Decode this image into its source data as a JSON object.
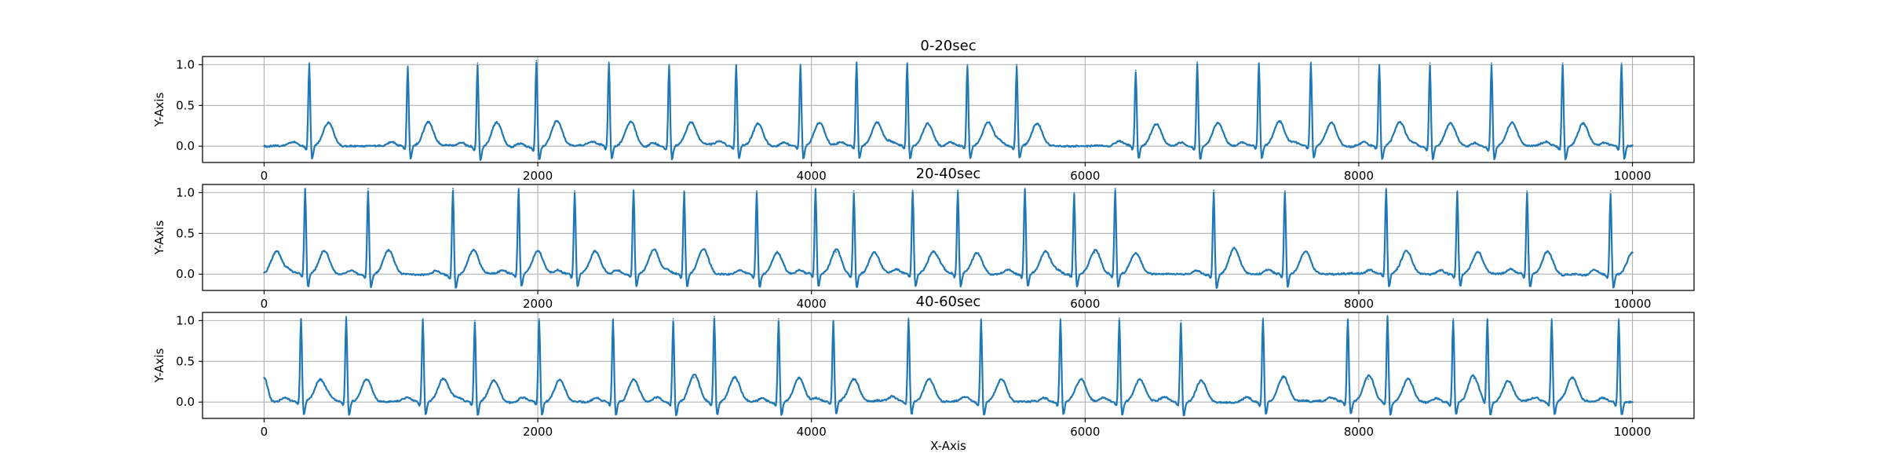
{
  "chart_data": [
    {
      "type": "line",
      "title": "0-20sec",
      "xlabel": "",
      "ylabel": "Y-Axis",
      "xlim": [
        -450,
        10450
      ],
      "ylim": [
        -0.2,
        1.1
      ],
      "xticks": [
        0,
        2000,
        4000,
        6000,
        8000,
        10000
      ],
      "yticks": [
        0.0,
        0.5,
        1.0
      ],
      "xtick_labels": [
        "0",
        "2000",
        "4000",
        "6000",
        "8000",
        "10000"
      ],
      "ytick_labels": [
        "0.0",
        "0.5",
        "1.0"
      ],
      "grid": true,
      "series": [
        {
          "color": "#1f77b4",
          "x_range": [
            0,
            10000
          ],
          "baseline": 0.0,
          "r_peaks": [
            {
              "x": 330,
              "y": 1.02
            },
            {
              "x": 1050,
              "y": 0.98
            },
            {
              "x": 1560,
              "y": 1.02
            },
            {
              "x": 1990,
              "y": 1.05
            },
            {
              "x": 2520,
              "y": 1.03
            },
            {
              "x": 2960,
              "y": 1.0
            },
            {
              "x": 3450,
              "y": 1.0
            },
            {
              "x": 3920,
              "y": 1.0
            },
            {
              "x": 4330,
              "y": 1.03
            },
            {
              "x": 4700,
              "y": 1.02
            },
            {
              "x": 5140,
              "y": 1.0
            },
            {
              "x": 5500,
              "y": 1.0
            },
            {
              "x": 6370,
              "y": 0.93
            },
            {
              "x": 6820,
              "y": 1.03
            },
            {
              "x": 7270,
              "y": 1.02
            },
            {
              "x": 7650,
              "y": 1.03
            },
            {
              "x": 8150,
              "y": 1.0
            },
            {
              "x": 8520,
              "y": 1.02
            },
            {
              "x": 8970,
              "y": 1.02
            },
            {
              "x": 9490,
              "y": 1.02
            },
            {
              "x": 9920,
              "y": 1.02
            }
          ],
          "t_waves": [
            {
              "x": 470,
              "y": 0.29
            },
            {
              "x": 1200,
              "y": 0.3
            },
            {
              "x": 1700,
              "y": 0.3
            },
            {
              "x": 2140,
              "y": 0.31
            },
            {
              "x": 2680,
              "y": 0.3
            },
            {
              "x": 3120,
              "y": 0.29
            },
            {
              "x": 3610,
              "y": 0.28
            },
            {
              "x": 4060,
              "y": 0.29
            },
            {
              "x": 4480,
              "y": 0.29
            },
            {
              "x": 4850,
              "y": 0.28
            },
            {
              "x": 5290,
              "y": 0.29
            },
            {
              "x": 5650,
              "y": 0.27
            },
            {
              "x": 6520,
              "y": 0.27
            },
            {
              "x": 6970,
              "y": 0.29
            },
            {
              "x": 7420,
              "y": 0.3
            },
            {
              "x": 7800,
              "y": 0.29
            },
            {
              "x": 8300,
              "y": 0.3
            },
            {
              "x": 8670,
              "y": 0.29
            },
            {
              "x": 9120,
              "y": 0.29
            },
            {
              "x": 9640,
              "y": 0.29
            }
          ]
        }
      ]
    },
    {
      "type": "line",
      "title": "20-40sec",
      "xlabel": "",
      "ylabel": "Y-Axis",
      "xlim": [
        -450,
        10450
      ],
      "ylim": [
        -0.2,
        1.1
      ],
      "xticks": [
        0,
        2000,
        4000,
        6000,
        8000,
        10000
      ],
      "yticks": [
        0.0,
        0.5,
        1.0
      ],
      "xtick_labels": [
        "0",
        "2000",
        "4000",
        "6000",
        "8000",
        "10000"
      ],
      "ytick_labels": [
        "0.0",
        "0.5",
        "1.0"
      ],
      "grid": true,
      "series": [
        {
          "color": "#1f77b4",
          "x_range": [
            0,
            10000
          ],
          "baseline": 0.0,
          "r_peaks": [
            {
              "x": 300,
              "y": 1.05
            },
            {
              "x": 760,
              "y": 1.05
            },
            {
              "x": 1380,
              "y": 1.05
            },
            {
              "x": 1860,
              "y": 1.05
            },
            {
              "x": 2270,
              "y": 1.02
            },
            {
              "x": 2700,
              "y": 1.03
            },
            {
              "x": 3070,
              "y": 1.02
            },
            {
              "x": 3600,
              "y": 1.02
            },
            {
              "x": 4030,
              "y": 1.05
            },
            {
              "x": 4310,
              "y": 1.02
            },
            {
              "x": 4740,
              "y": 1.03
            },
            {
              "x": 5070,
              "y": 1.03
            },
            {
              "x": 5560,
              "y": 1.05
            },
            {
              "x": 5920,
              "y": 1.0
            },
            {
              "x": 6220,
              "y": 1.05
            },
            {
              "x": 6940,
              "y": 1.03
            },
            {
              "x": 7460,
              "y": 1.02
            },
            {
              "x": 8200,
              "y": 1.05
            },
            {
              "x": 8720,
              "y": 1.02
            },
            {
              "x": 9230,
              "y": 1.02
            },
            {
              "x": 9840,
              "y": 1.02
            }
          ],
          "t_waves": [
            {
              "x": 90,
              "y": 0.28
            },
            {
              "x": 440,
              "y": 0.29
            },
            {
              "x": 910,
              "y": 0.3
            },
            {
              "x": 1530,
              "y": 0.3
            },
            {
              "x": 2000,
              "y": 0.29
            },
            {
              "x": 2420,
              "y": 0.29
            },
            {
              "x": 2850,
              "y": 0.3
            },
            {
              "x": 3210,
              "y": 0.3
            },
            {
              "x": 3750,
              "y": 0.28
            },
            {
              "x": 4180,
              "y": 0.27
            },
            {
              "x": 4460,
              "y": 0.27
            },
            {
              "x": 4890,
              "y": 0.27
            },
            {
              "x": 5210,
              "y": 0.26
            },
            {
              "x": 5710,
              "y": 0.28
            },
            {
              "x": 6070,
              "y": 0.26
            },
            {
              "x": 6370,
              "y": 0.26
            },
            {
              "x": 7090,
              "y": 0.33
            },
            {
              "x": 7610,
              "y": 0.28
            },
            {
              "x": 8350,
              "y": 0.29
            },
            {
              "x": 8870,
              "y": 0.28
            },
            {
              "x": 9380,
              "y": 0.28
            },
            {
              "x": 10000,
              "y": 0.27
            }
          ]
        }
      ]
    },
    {
      "type": "line",
      "title": "40-60sec",
      "xlabel": "X-Axis",
      "ylabel": "Y-Axis",
      "xlim": [
        -450,
        10450
      ],
      "ylim": [
        -0.2,
        1.1
      ],
      "xticks": [
        0,
        2000,
        4000,
        6000,
        8000,
        10000
      ],
      "yticks": [
        0.0,
        0.5,
        1.0
      ],
      "xtick_labels": [
        "0",
        "2000",
        "4000",
        "6000",
        "8000",
        "10000"
      ],
      "ytick_labels": [
        "0.0",
        "0.5",
        "1.0"
      ],
      "grid": true,
      "series": [
        {
          "color": "#1f77b4",
          "x_range": [
            0,
            10000
          ],
          "baseline": 0.0,
          "start_value": 0.3,
          "r_peaks": [
            {
              "x": 270,
              "y": 1.02
            },
            {
              "x": 600,
              "y": 1.05
            },
            {
              "x": 1160,
              "y": 1.02
            },
            {
              "x": 1540,
              "y": 1.0
            },
            {
              "x": 2010,
              "y": 1.02
            },
            {
              "x": 2550,
              "y": 1.02
            },
            {
              "x": 2990,
              "y": 1.02
            },
            {
              "x": 3290,
              "y": 1.05
            },
            {
              "x": 3760,
              "y": 1.02
            },
            {
              "x": 4160,
              "y": 1.0
            },
            {
              "x": 4710,
              "y": 1.03
            },
            {
              "x": 5240,
              "y": 1.02
            },
            {
              "x": 5820,
              "y": 1.02
            },
            {
              "x": 6250,
              "y": 1.03
            },
            {
              "x": 6700,
              "y": 1.0
            },
            {
              "x": 7300,
              "y": 1.03
            },
            {
              "x": 7920,
              "y": 1.02
            },
            {
              "x": 8210,
              "y": 1.06
            },
            {
              "x": 8690,
              "y": 1.02
            },
            {
              "x": 8940,
              "y": 1.02
            },
            {
              "x": 9410,
              "y": 1.02
            },
            {
              "x": 9900,
              "y": 1.02
            }
          ],
          "t_waves": [
            {
              "x": 410,
              "y": 0.27
            },
            {
              "x": 750,
              "y": 0.28
            },
            {
              "x": 1310,
              "y": 0.28
            },
            {
              "x": 1680,
              "y": 0.26
            },
            {
              "x": 2160,
              "y": 0.28
            },
            {
              "x": 2700,
              "y": 0.28
            },
            {
              "x": 3140,
              "y": 0.3
            },
            {
              "x": 3440,
              "y": 0.3
            },
            {
              "x": 3910,
              "y": 0.29
            },
            {
              "x": 4310,
              "y": 0.27
            },
            {
              "x": 4860,
              "y": 0.28
            },
            {
              "x": 5390,
              "y": 0.28
            },
            {
              "x": 5970,
              "y": 0.28
            },
            {
              "x": 6400,
              "y": 0.28
            },
            {
              "x": 6850,
              "y": 0.27
            },
            {
              "x": 7450,
              "y": 0.3
            },
            {
              "x": 8070,
              "y": 0.28
            },
            {
              "x": 8360,
              "y": 0.29
            },
            {
              "x": 8840,
              "y": 0.29
            },
            {
              "x": 9090,
              "y": 0.26
            },
            {
              "x": 9560,
              "y": 0.29
            }
          ]
        }
      ]
    }
  ]
}
